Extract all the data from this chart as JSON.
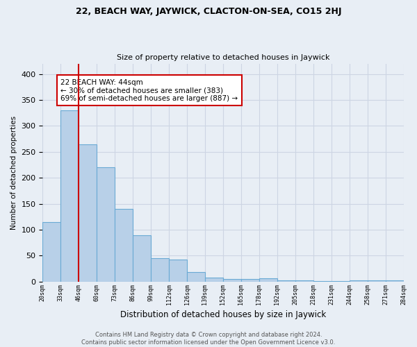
{
  "title1": "22, BEACH WAY, JAYWICK, CLACTON-ON-SEA, CO15 2HJ",
  "title2": "Size of property relative to detached houses in Jaywick",
  "xlabel": "Distribution of detached houses by size in Jaywick",
  "ylabel": "Number of detached properties",
  "bar_values": [
    115,
    330,
    265,
    220,
    140,
    90,
    45,
    42,
    18,
    8,
    5,
    5,
    6,
    2,
    2,
    1,
    1,
    2,
    3,
    2
  ],
  "categories": [
    "20sqm",
    "33sqm",
    "46sqm",
    "60sqm",
    "73sqm",
    "86sqm",
    "99sqm",
    "112sqm",
    "126sqm",
    "139sqm",
    "152sqm",
    "165sqm",
    "178sqm",
    "192sqm",
    "205sqm",
    "218sqm",
    "231sqm",
    "244sqm",
    "258sqm",
    "271sqm",
    "284sqm"
  ],
  "bar_color": "#b8d0e8",
  "bar_edge_color": "#6aaad4",
  "annotation_text": "22 BEACH WAY: 44sqm\n← 30% of detached houses are smaller (383)\n69% of semi-detached houses are larger (887) →",
  "annotation_box_color": "#ffffff",
  "annotation_box_edge": "#cc0000",
  "grid_color": "#cdd5e3",
  "background_color": "#e8eef5",
  "footer": "Contains HM Land Registry data © Crown copyright and database right 2024.\nContains public sector information licensed under the Open Government Licence v3.0.",
  "ylim": [
    0,
    420
  ],
  "red_line_color": "#cc0000",
  "yticks": [
    0,
    50,
    100,
    150,
    200,
    250,
    300,
    350,
    400
  ]
}
